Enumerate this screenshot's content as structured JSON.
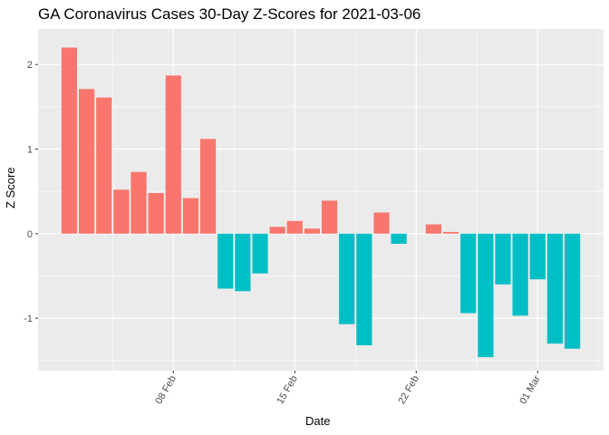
{
  "chart_data": {
    "type": "bar",
    "title": "GA Coronavirus Cases 30-Day Z-Scores for 2021-03-06",
    "xlabel": "Date",
    "ylabel": "Z Score",
    "ylim": [
      -1.62,
      2.42
    ],
    "y_ticks": [
      {
        "value": 2,
        "label": "2"
      },
      {
        "value": 1,
        "label": "1"
      },
      {
        "value": 0,
        "label": "0"
      },
      {
        "value": -1,
        "label": "-1"
      }
    ],
    "x_ticks": [
      {
        "day": 7,
        "label": "08 Feb"
      },
      {
        "day": 14,
        "label": "15 Feb"
      },
      {
        "day": 21,
        "label": "22 Feb"
      },
      {
        "day": 28,
        "label": "01 Mar"
      }
    ],
    "x_range_days": [
      -0.8,
      31.8
    ],
    "bars": [
      {
        "date": "2021-02-02",
        "day": 1,
        "value": 2.2
      },
      {
        "date": "2021-02-03",
        "day": 2,
        "value": 1.71
      },
      {
        "date": "2021-02-04",
        "day": 3,
        "value": 1.61
      },
      {
        "date": "2021-02-05",
        "day": 4,
        "value": 0.52
      },
      {
        "date": "2021-02-06",
        "day": 5,
        "value": 0.73
      },
      {
        "date": "2021-02-07",
        "day": 6,
        "value": 0.48
      },
      {
        "date": "2021-02-08",
        "day": 7,
        "value": 1.87
      },
      {
        "date": "2021-02-09",
        "day": 8,
        "value": 0.42
      },
      {
        "date": "2021-02-10",
        "day": 9,
        "value": 1.12
      },
      {
        "date": "2021-02-11",
        "day": 10,
        "value": -0.65
      },
      {
        "date": "2021-02-12",
        "day": 11,
        "value": -0.68
      },
      {
        "date": "2021-02-13",
        "day": 12,
        "value": -0.47
      },
      {
        "date": "2021-02-14",
        "day": 13,
        "value": 0.08
      },
      {
        "date": "2021-02-15",
        "day": 14,
        "value": 0.15
      },
      {
        "date": "2021-02-16",
        "day": 15,
        "value": 0.06
      },
      {
        "date": "2021-02-17",
        "day": 16,
        "value": 0.39
      },
      {
        "date": "2021-02-18",
        "day": 17,
        "value": -1.07
      },
      {
        "date": "2021-02-19",
        "day": 18,
        "value": -1.32
      },
      {
        "date": "2021-02-20",
        "day": 19,
        "value": 0.25
      },
      {
        "date": "2021-02-21",
        "day": 20,
        "value": -0.12
      },
      {
        "date": "2021-02-23",
        "day": 22,
        "value": 0.11
      },
      {
        "date": "2021-02-24",
        "day": 23,
        "value": 0.02
      },
      {
        "date": "2021-02-25",
        "day": 24,
        "value": -0.94
      },
      {
        "date": "2021-02-26",
        "day": 25,
        "value": -1.46
      },
      {
        "date": "2021-02-27",
        "day": 26,
        "value": -0.6
      },
      {
        "date": "2021-02-28",
        "day": 27,
        "value": -0.97
      },
      {
        "date": "2021-03-01",
        "day": 28,
        "value": -0.54
      },
      {
        "date": "2021-03-02",
        "day": 29,
        "value": -1.3
      },
      {
        "date": "2021-03-03",
        "day": 30,
        "value": -1.36
      }
    ],
    "colors": {
      "positive": "#F8766D",
      "negative": "#00BFC4",
      "panel": "#EBEBEB",
      "grid": "#FFFFFF",
      "tick": "#4D4D4D"
    }
  }
}
